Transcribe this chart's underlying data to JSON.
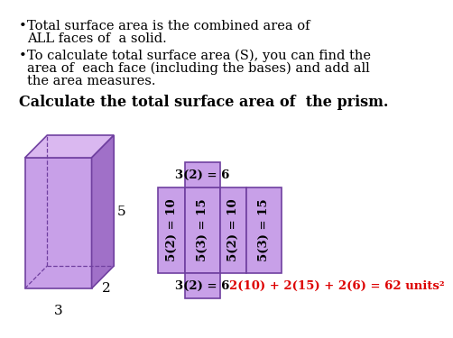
{
  "background_color": "#ffffff",
  "bullet1_line1": "Total surface area is the combined area of",
  "bullet1_line2": "ALL faces of  a solid.",
  "bullet2_line1": "To calculate total surface area (S), you can find the",
  "bullet2_line2": "area of  each face (including the bases) and add all",
  "bullet2_line3": "the area measures.",
  "bold_text": "Calculate the total surface area of  the prism.",
  "prism_front_color": "#c8a0e8",
  "prism_top_color": "#dab8f0",
  "prism_right_color": "#a070c8",
  "prism_edge_color": "#7040a0",
  "net_color": "#c8a0e8",
  "net_border_color": "#7040a0",
  "label_5": "5",
  "label_2": "2",
  "label_3": "3",
  "top_label": "3(2) = 6",
  "bottom_label": "3(2) = 6",
  "side1_label": "5(2) = 10",
  "side2_label": "5(3) = 15",
  "side3_label": "5(2) = 10",
  "side4_label": "5(3) = 15",
  "formula": "2(10) + 2(15) + 2(6) = 62 units²",
  "formula_color": "#dd0000",
  "text_color": "#000000",
  "font_size_bullets": 10.5,
  "font_size_bold": 11.5,
  "font_size_net": 8.5
}
